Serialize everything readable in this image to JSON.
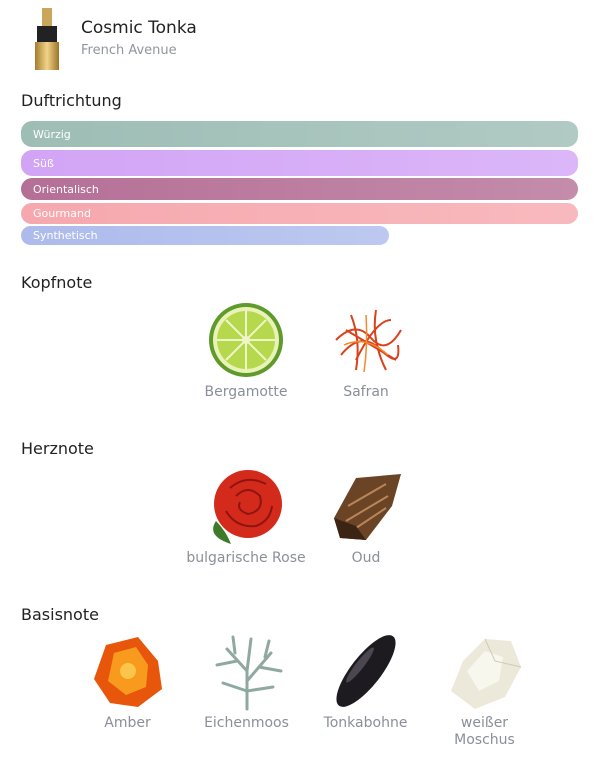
{
  "header": {
    "title": "Cosmic Tonka",
    "brand": "French Avenue"
  },
  "accords": {
    "title": "Duftrichtung",
    "items": [
      {
        "name": "Würzig",
        "value": 100,
        "color": "#9dbdb5"
      },
      {
        "name": "Süß",
        "value": 100,
        "color": "#d2a4f6"
      },
      {
        "name": "Orientalisch",
        "value": 100,
        "color": "#b56f96"
      },
      {
        "name": "Gourmand",
        "value": 100,
        "color": "#f6a8ae"
      },
      {
        "name": "Synthetisch",
        "value": 66,
        "color": "#adbbec"
      }
    ]
  },
  "notes": [
    {
      "title": "Kopfnote",
      "items": [
        "Bergamotte",
        "Safran"
      ]
    },
    {
      "title": "Herznote",
      "items": [
        "bulgarische Rose",
        "Oud"
      ]
    },
    {
      "title": "Basisnote",
      "items": [
        "Amber",
        "Eichenmoos",
        "Tonkabohne",
        "weißer Moschus"
      ]
    }
  ]
}
